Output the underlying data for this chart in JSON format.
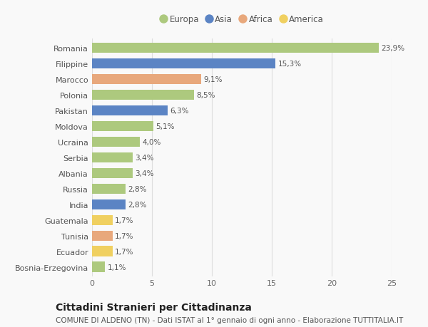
{
  "countries": [
    "Romania",
    "Filippine",
    "Marocco",
    "Polonia",
    "Pakistan",
    "Moldova",
    "Ucraina",
    "Serbia",
    "Albania",
    "Russia",
    "India",
    "Guatemala",
    "Tunisia",
    "Ecuador",
    "Bosnia-Erzegovina"
  ],
  "values": [
    23.9,
    15.3,
    9.1,
    8.5,
    6.3,
    5.1,
    4.0,
    3.4,
    3.4,
    2.8,
    2.8,
    1.7,
    1.7,
    1.7,
    1.1
  ],
  "labels": [
    "23,9%",
    "15,3%",
    "9,1%",
    "8,5%",
    "6,3%",
    "5,1%",
    "4,0%",
    "3,4%",
    "3,4%",
    "2,8%",
    "2,8%",
    "1,7%",
    "1,7%",
    "1,7%",
    "1,1%"
  ],
  "continents": [
    "Europa",
    "Asia",
    "Africa",
    "Europa",
    "Asia",
    "Europa",
    "Europa",
    "Europa",
    "Europa",
    "Europa",
    "Asia",
    "America",
    "Africa",
    "America",
    "Europa"
  ],
  "continent_colors": {
    "Europa": "#adc97e",
    "Asia": "#5b84c4",
    "Africa": "#e8a87c",
    "America": "#f0d060"
  },
  "legend_order": [
    "Europa",
    "Asia",
    "Africa",
    "America"
  ],
  "title": "Cittadini Stranieri per Cittadinanza",
  "subtitle": "COMUNE DI ALDENO (TN) - Dati ISTAT al 1° gennaio di ogni anno - Elaborazione TUTTITALIA.IT",
  "xlim": [
    0,
    25
  ],
  "xticks": [
    0,
    5,
    10,
    15,
    20,
    25
  ],
  "background_color": "#f9f9f9",
  "bar_height": 0.65,
  "grid_color": "#dddddd",
  "title_fontsize": 10,
  "subtitle_fontsize": 7.5,
  "label_fontsize": 7.5,
  "tick_fontsize": 8,
  "legend_fontsize": 8.5
}
